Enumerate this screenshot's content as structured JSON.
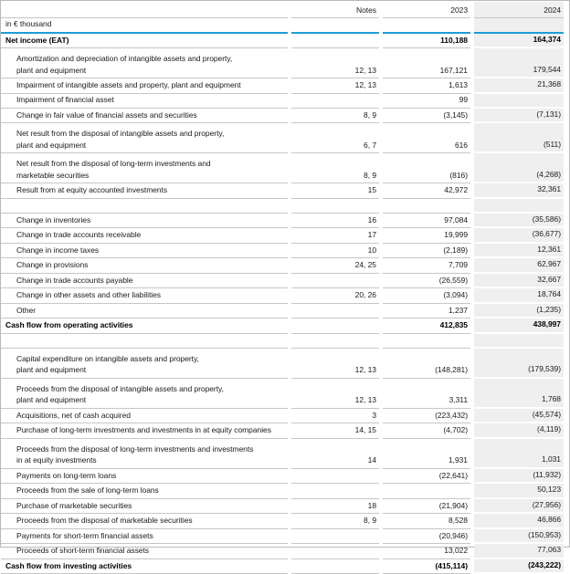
{
  "meta": {
    "unit_label": "in € thousand",
    "accent_blue": "#1e9cd8",
    "column_2024_bg": "#efefef",
    "separator_gray": "#c6c6c6"
  },
  "header": {
    "notes": "Notes",
    "y2023": "2023",
    "y2024": "2024"
  },
  "rows": [
    {
      "type": "section",
      "label": "Net income (EAT)",
      "notes": "",
      "v2023": "110,188",
      "v2024": "164,374"
    },
    {
      "type": "item",
      "label": "Amortization and depreciation of intangible assets and property,\nplant and equipment",
      "notes": "12, 13",
      "v2023": "167,121",
      "v2024": "179,544"
    },
    {
      "type": "item",
      "label": "Impairment of intangible assets and property, plant and equipment",
      "notes": "12, 13",
      "v2023": "1,613",
      "v2024": "21,368"
    },
    {
      "type": "item",
      "label": "Impairment of financial asset",
      "notes": "",
      "v2023": "99",
      "v2024": ""
    },
    {
      "type": "item",
      "label": "Change in fair value of financial assets and securities",
      "notes": "8, 9",
      "v2023": "(3,145)",
      "v2024": "(7,131)"
    },
    {
      "type": "item",
      "label": "Net result from the disposal of intangible assets and property,\nplant and equipment",
      "notes": "6, 7",
      "v2023": "616",
      "v2024": "(511)"
    },
    {
      "type": "item",
      "label": "Net result from the disposal of long-term investments and\nmarketable securities",
      "notes": "8, 9",
      "v2023": "(816)",
      "v2024": "(4,268)"
    },
    {
      "type": "item",
      "label": "Result from at equity accounted investments",
      "notes": "15",
      "v2023": "42,972",
      "v2024": "32,361"
    },
    {
      "type": "spacer",
      "label": "",
      "notes": "",
      "v2023": "",
      "v2024": ""
    },
    {
      "type": "item",
      "label": "Change in inventories",
      "notes": "16",
      "v2023": "97,084",
      "v2024": "(35,586)"
    },
    {
      "type": "item",
      "label": "Change in trade accounts receivable",
      "notes": "17",
      "v2023": "19,999",
      "v2024": "(36,677)"
    },
    {
      "type": "item",
      "label": "Change in income taxes",
      "notes": "10",
      "v2023": "(2,189)",
      "v2024": "12,361"
    },
    {
      "type": "item",
      "label": "Change in provisions",
      "notes": "24, 25",
      "v2023": "7,709",
      "v2024": "62,967"
    },
    {
      "type": "item",
      "label": "Change in trade accounts payable",
      "notes": "",
      "v2023": "(26,559)",
      "v2024": "32,667"
    },
    {
      "type": "item",
      "label": "Change in other assets and other liabilities",
      "notes": "20, 26",
      "v2023": "(3,094)",
      "v2024": "18,764"
    },
    {
      "type": "item",
      "label": "Other",
      "notes": "",
      "v2023": "1,237",
      "v2024": "(1,235)"
    },
    {
      "type": "section",
      "label": "Cash flow from operating activities",
      "notes": "",
      "v2023": "412,835",
      "v2024": "438,997"
    },
    {
      "type": "spacer",
      "label": "",
      "notes": "",
      "v2023": "",
      "v2024": ""
    },
    {
      "type": "item",
      "label": "Capital expenditure on intangible assets and property,\nplant and equipment",
      "notes": "12, 13",
      "v2023": "(148,281)",
      "v2024": "(179,539)"
    },
    {
      "type": "item",
      "label": "Proceeds from the disposal of intangible assets and property,\nplant and equipment",
      "notes": "12, 13",
      "v2023": "3,311",
      "v2024": "1,768"
    },
    {
      "type": "item",
      "label": "Acquisitions, net of cash acquired",
      "notes": "3",
      "v2023": "(223,432)",
      "v2024": "(45,574)"
    },
    {
      "type": "item",
      "label": "Purchase of long-term investments and investments in at equity companies",
      "notes": "14, 15",
      "v2023": "(4,702)",
      "v2024": "(4,119)"
    },
    {
      "type": "item",
      "label": "Proceeds from the disposal of long-term investments and investments\nin at equity investments",
      "notes": "14",
      "v2023": "1,931",
      "v2024": "1,031"
    },
    {
      "type": "item",
      "label": "Payments on long-term loans",
      "notes": "",
      "v2023": "(22,641)",
      "v2024": "(11,932)"
    },
    {
      "type": "item",
      "label": "Proceeds from the sale of long-term loans",
      "notes": "",
      "v2023": "",
      "v2024": "50,123"
    },
    {
      "type": "item",
      "label": "Purchase of marketable securities",
      "notes": "18",
      "v2023": "(21,904)",
      "v2024": "(27,956)"
    },
    {
      "type": "item",
      "label": "Proceeds from the disposal of marketable securities",
      "notes": "8, 9",
      "v2023": "8,528",
      "v2024": "46,866"
    },
    {
      "type": "item",
      "label": "Payments for short-term financial assets",
      "notes": "",
      "v2023": "(20,946)",
      "v2024": "(150,953)"
    },
    {
      "type": "item",
      "label": "Proceeds of short-term financial assets",
      "notes": "",
      "v2023": "13,022",
      "v2024": "77,063"
    },
    {
      "type": "section",
      "label": "Cash flow from investing activities",
      "notes": "",
      "v2023": "(415,114)",
      "v2024": "(243,222)"
    }
  ]
}
